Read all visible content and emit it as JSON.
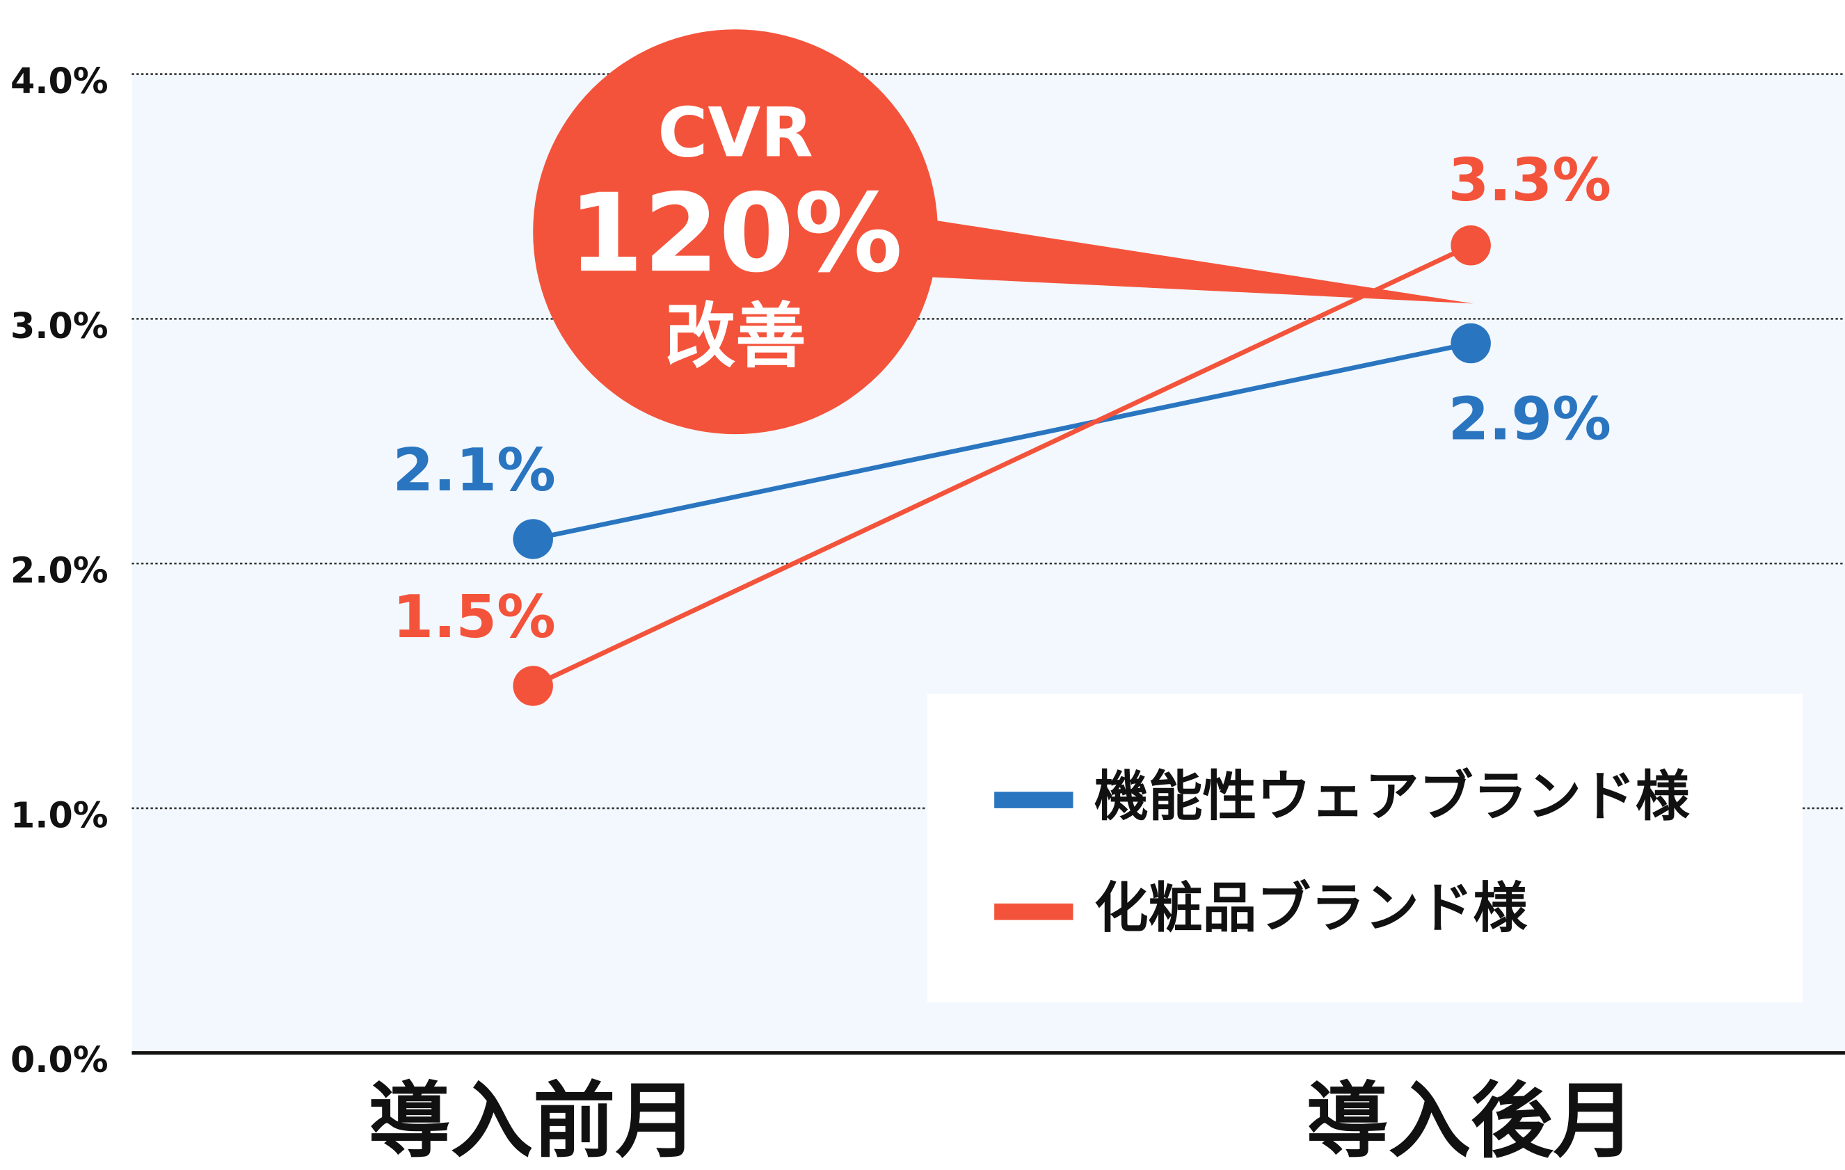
{
  "chart_data": {
    "type": "line",
    "categories": [
      "導入前月",
      "導入後月"
    ],
    "series": [
      {
        "name": "機能性ウェアブランド様",
        "color": "#2a75c0",
        "values": [
          2.1,
          2.9
        ],
        "value_labels": [
          "2.1%",
          "2.9%"
        ]
      },
      {
        "name": "化粧品ブランド様",
        "color": "#f4533b",
        "values": [
          1.5,
          3.3
        ],
        "value_labels": [
          "1.5%",
          "3.3%"
        ]
      }
    ],
    "ylim": [
      0,
      4
    ],
    "yticks": [
      {
        "value": 0,
        "label": "0.0%"
      },
      {
        "value": 1,
        "label": "1.0%"
      },
      {
        "value": 2,
        "label": "2.0%"
      },
      {
        "value": 3,
        "label": "3.0%"
      },
      {
        "value": 4,
        "label": "4.0%"
      }
    ],
    "grid": true,
    "legend": "lower right",
    "annotation": {
      "lines": [
        "CVR",
        "120%",
        "改善"
      ],
      "color": "#f4533b"
    }
  }
}
